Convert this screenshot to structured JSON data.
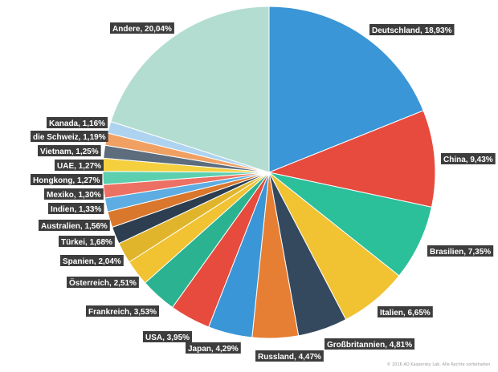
{
  "chart_data": {
    "type": "pie",
    "title": "",
    "slices": [
      {
        "label": "Deutschland",
        "value": 18.93,
        "display": "Deutschland, 18,93%",
        "color": "#3a96d6"
      },
      {
        "label": "China",
        "value": 9.43,
        "display": "China, 9,43%",
        "color": "#e64b3e"
      },
      {
        "label": "Brasilien",
        "value": 7.35,
        "display": "Brasilien, 7,35%",
        "color": "#2bbf9a"
      },
      {
        "label": "Italien",
        "value": 6.65,
        "display": "Italien, 6,65%",
        "color": "#f1c232"
      },
      {
        "label": "Großbritannien",
        "value": 4.81,
        "display": "Großbritannien, 4,81%",
        "color": "#34495e"
      },
      {
        "label": "Russland",
        "value": 4.47,
        "display": "Russland, 4,47%",
        "color": "#e67e33"
      },
      {
        "label": "Japan",
        "value": 4.29,
        "display": "Japan, 4,29%",
        "color": "#3a96d6"
      },
      {
        "label": "USA",
        "value": 3.95,
        "display": "USA, 3,95%",
        "color": "#e64b3e"
      },
      {
        "label": "Frankreich",
        "value": 3.53,
        "display": "Frankreich, 3,53%",
        "color": "#2bb391"
      },
      {
        "label": "Österreich",
        "value": 2.51,
        "display": "Österreich, 2,51%",
        "color": "#f1c232"
      },
      {
        "label": "Spanien",
        "value": 2.04,
        "display": "Spanien, 2,04%",
        "color": "#e0b52c"
      },
      {
        "label": "Türkei",
        "value": 1.68,
        "display": "Türkei, 1,68%",
        "color": "#2c3e50"
      },
      {
        "label": "Australien",
        "value": 1.56,
        "display": "Australien, 1,56%",
        "color": "#d9772d"
      },
      {
        "label": "Indien",
        "value": 1.33,
        "display": "Indien, 1,33%",
        "color": "#5dade2"
      },
      {
        "label": "Mexiko",
        "value": 1.3,
        "display": "Mexiko, 1,30%",
        "color": "#ec7063"
      },
      {
        "label": "Hongkong",
        "value": 1.27,
        "display": "Hongkong, 1,27%",
        "color": "#5ccfae"
      },
      {
        "label": "UAE",
        "value": 1.27,
        "display": "UAE, 1,27%",
        "color": "#f4d03f"
      },
      {
        "label": "Vietnam",
        "value": 1.25,
        "display": "Vietnam, 1,25%",
        "color": "#5d6d7e"
      },
      {
        "label": "die Schweiz",
        "value": 1.19,
        "display": "die Schweiz, 1,19%",
        "color": "#f0a063"
      },
      {
        "label": "Kanada",
        "value": 1.16,
        "display": "Kanada, 1,16%",
        "color": "#aed3f0"
      },
      {
        "label": "Andere",
        "value": 20.04,
        "display": "Andere, 20,04%",
        "color": "#f1b5b2"
      }
    ]
  },
  "footer": {
    "copyright": "© 2016 AO Kaspersky Lab. Alle Rechte vorbehalten."
  }
}
